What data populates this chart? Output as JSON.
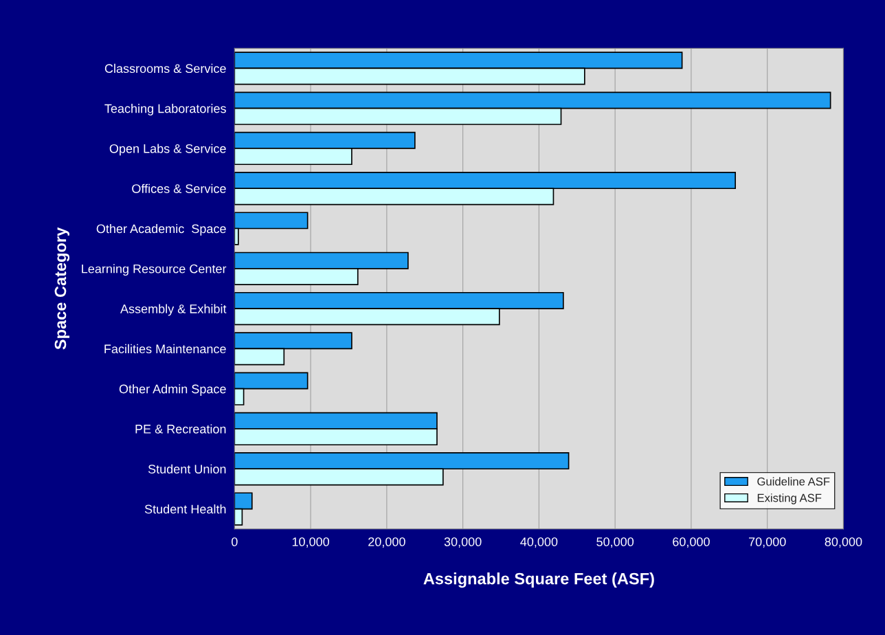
{
  "chart_data": {
    "type": "bar",
    "orientation": "horizontal",
    "xlabel": "Assignable Square Feet (ASF)",
    "ylabel": "Space Category",
    "categories": [
      "Classrooms & Service",
      "Teaching Laboratories",
      "Open Labs & Service",
      "Offices & Service",
      "Other Academic  Space",
      "Learning Resource Center",
      "Assembly & Exhibit",
      "Facilities Maintenance",
      "Other Admin Space",
      "PE & Recreation",
      "Student Union",
      "Student Health"
    ],
    "series": [
      {
        "name": "Guideline ASF",
        "color": "#1e9cf0",
        "values": [
          58800,
          78300,
          23700,
          65800,
          9600,
          22800,
          43200,
          15400,
          9600,
          26600,
          43900,
          2300
        ]
      },
      {
        "name": "Existing ASF",
        "color": "#ccffff",
        "values": [
          46000,
          42900,
          15400,
          41900,
          500,
          16200,
          34800,
          6500,
          1200,
          26600,
          27400,
          1000
        ]
      }
    ],
    "xlim": [
      0,
      80000
    ],
    "xticks": [
      0,
      {
        "value": 10000,
        "label": "10,000"
      },
      {
        "value": 20000,
        "label": "20,000"
      },
      {
        "value": 30000,
        "label": "30,000"
      },
      {
        "value": 40000,
        "label": "40,000"
      },
      {
        "value": 50000,
        "label": "50,000"
      },
      {
        "value": 60000,
        "label": "60,000"
      },
      {
        "value": 70000,
        "label": "70,000"
      },
      {
        "value": 80000,
        "label": "80,000"
      }
    ],
    "grid": "x",
    "legend": "bottom right"
  }
}
